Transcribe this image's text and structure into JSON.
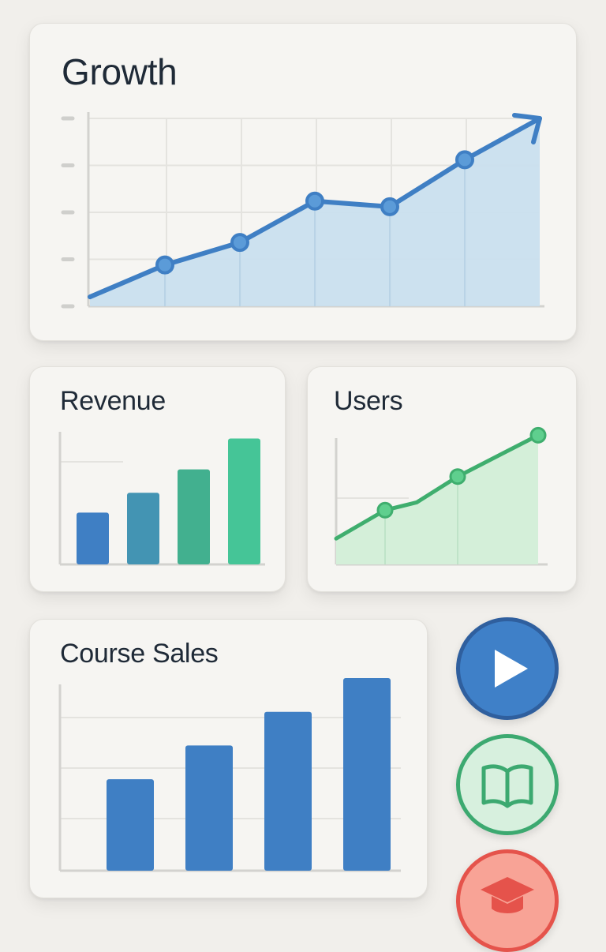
{
  "colors": {
    "blue": "#3f7fc4",
    "blue_fill": "#c9dfee",
    "green": "#3dbb8c",
    "green_line": "#3fae6e",
    "green_fill": "#d4efd9",
    "red": "#e5534b"
  },
  "chart_data": [
    {
      "type": "area",
      "title": "Growth",
      "x": [
        0,
        1,
        2,
        3,
        4,
        5,
        6
      ],
      "values": [
        5,
        22,
        34,
        56,
        53,
        78,
        100
      ],
      "markers": [
        1,
        2,
        3,
        4,
        5
      ],
      "ylim": [
        0,
        100
      ],
      "grid": true,
      "trend_arrow": true
    },
    {
      "type": "bar",
      "title": "Revenue",
      "categories": [
        "",
        "",
        "",
        ""
      ],
      "values": [
        42,
        58,
        77,
        102
      ],
      "ylim": [
        0,
        110
      ],
      "bar_colors": [
        "#3f7fc4",
        "#4394b3",
        "#42b08f",
        "#45c597"
      ]
    },
    {
      "type": "area",
      "title": "Users",
      "x": [
        0,
        1,
        2,
        3,
        4
      ],
      "values": [
        20,
        42,
        48,
        68,
        100
      ],
      "markers": [
        1,
        3,
        4
      ],
      "ylim": [
        0,
        110
      ]
    },
    {
      "type": "bar",
      "title": "Course Sales",
      "categories": [
        "",
        "",
        "",
        ""
      ],
      "values": [
        38,
        52,
        66,
        80
      ],
      "ylim": [
        0,
        80
      ],
      "grid": true
    }
  ],
  "buttons": [
    {
      "icon": "play-icon"
    },
    {
      "icon": "book-icon"
    },
    {
      "icon": "graduation-cap-icon"
    }
  ]
}
